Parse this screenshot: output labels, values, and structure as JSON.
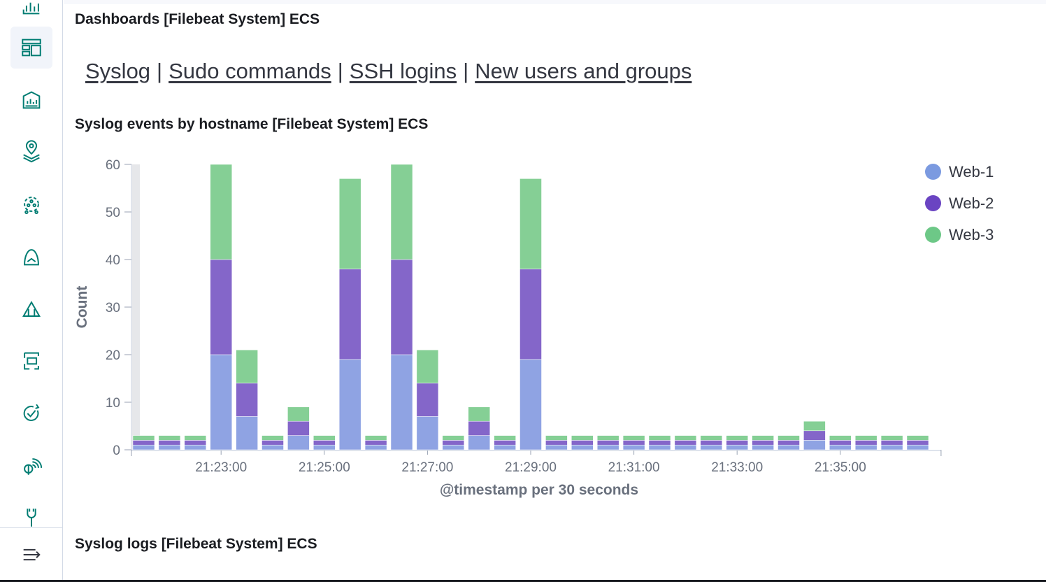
{
  "sidebar": {
    "items": [
      {
        "icon": "dashboard-icon",
        "active": true
      },
      {
        "icon": "canvas-icon",
        "active": false
      },
      {
        "icon": "maps-icon",
        "active": false
      },
      {
        "icon": "machine-learning-icon",
        "active": false
      },
      {
        "icon": "graph-icon",
        "active": false
      },
      {
        "icon": "visualize-library-icon",
        "active": false
      },
      {
        "icon": "infrastructure-icon",
        "active": false
      },
      {
        "icon": "uptime-icon",
        "active": false
      },
      {
        "icon": "fleet-icon",
        "active": false
      },
      {
        "icon": "dev-tools-icon",
        "active": false
      }
    ],
    "collapse_icon": "menu-collapse-icon"
  },
  "panels": {
    "links_title": "Dashboards [Filebeat System] ECS",
    "links": [
      "Syslog",
      "Sudo commands",
      "SSH logins",
      "New users and groups"
    ],
    "links_separator": "|",
    "chart_title": "Syslog events by hostname [Filebeat System] ECS",
    "logs_title": "Syslog logs [Filebeat System] ECS"
  },
  "colors": {
    "Web-1": "#7b9ae0",
    "Web-2": "#6a44c2",
    "Web-3": "#6dc887"
  },
  "chart_data": {
    "type": "bar",
    "stacked": true,
    "title": "Syslog events by hostname [Filebeat System] ECS",
    "xlabel": "@timestamp per 30 seconds",
    "ylabel": "Count",
    "ylim": [
      0,
      60
    ],
    "yticks": [
      0,
      10,
      20,
      30,
      40,
      50,
      60
    ],
    "xticks": [
      "21:23:00",
      "21:25:00",
      "21:27:00",
      "21:29:00",
      "21:31:00",
      "21:33:00",
      "21:35:00"
    ],
    "xtick_bar_index": [
      3,
      7,
      11,
      15,
      19,
      23,
      27
    ],
    "categories": [
      "21:21:30",
      "21:22:00",
      "21:22:30",
      "21:23:00",
      "21:23:30",
      "21:24:00",
      "21:24:30",
      "21:25:00",
      "21:25:30",
      "21:26:00",
      "21:26:30",
      "21:27:00",
      "21:27:30",
      "21:28:00",
      "21:28:30",
      "21:29:00",
      "21:29:30",
      "21:30:00",
      "21:30:30",
      "21:31:00",
      "21:31:30",
      "21:32:00",
      "21:32:30",
      "21:33:00",
      "21:33:30",
      "21:34:00",
      "21:34:30",
      "21:35:00",
      "21:35:30",
      "21:36:00",
      "21:36:30"
    ],
    "series": [
      {
        "name": "Web-1",
        "values": [
          1,
          1,
          1,
          20,
          7,
          1,
          3,
          1,
          19,
          1,
          20,
          7,
          1,
          3,
          1,
          19,
          1,
          1,
          1,
          1,
          1,
          1,
          1,
          1,
          1,
          1,
          2,
          1,
          1,
          1,
          1
        ]
      },
      {
        "name": "Web-2",
        "values": [
          1,
          1,
          1,
          20,
          7,
          1,
          3,
          1,
          19,
          1,
          20,
          7,
          1,
          3,
          1,
          19,
          1,
          1,
          1,
          1,
          1,
          1,
          1,
          1,
          1,
          1,
          2,
          1,
          1,
          1,
          1
        ]
      },
      {
        "name": "Web-3",
        "values": [
          1,
          1,
          1,
          20,
          7,
          1,
          3,
          1,
          19,
          1,
          20,
          7,
          1,
          3,
          1,
          19,
          1,
          1,
          1,
          1,
          1,
          1,
          1,
          1,
          1,
          1,
          2,
          1,
          1,
          1,
          1
        ]
      }
    ],
    "legend": "right",
    "grid": false
  }
}
